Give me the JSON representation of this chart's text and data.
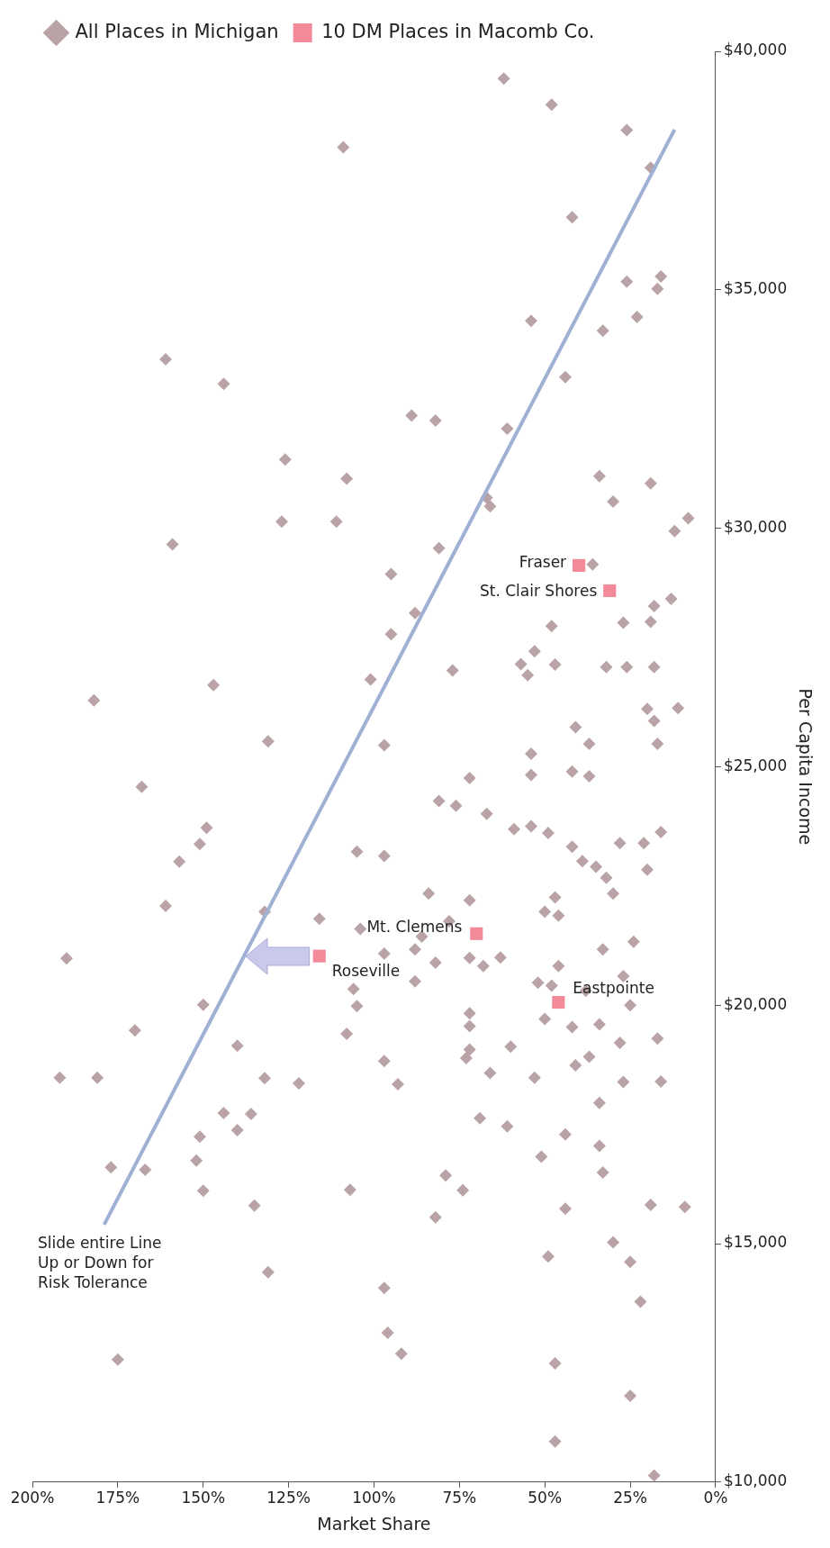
{
  "chart_data": {
    "type": "scatter",
    "xlabel": "Market Share",
    "ylabel": "Per Capita Income",
    "xlim": [
      200,
      0
    ],
    "ylim": [
      10000,
      40000
    ],
    "xticks": [
      {
        "value": 0,
        "label": "0%"
      },
      {
        "value": 25,
        "label": "25%"
      },
      {
        "value": 50,
        "label": "50%"
      },
      {
        "value": 75,
        "label": "75%"
      },
      {
        "value": 100,
        "label": "100%"
      },
      {
        "value": 125,
        "label": "125%"
      },
      {
        "value": 150,
        "label": "150%"
      },
      {
        "value": 175,
        "label": "175%"
      },
      {
        "value": 200,
        "label": "200%"
      }
    ],
    "yticks": [
      {
        "value": 10000,
        "label": "$10,000"
      },
      {
        "value": 15000,
        "label": "$15,000"
      },
      {
        "value": 20000,
        "label": "$20,000"
      },
      {
        "value": 25000,
        "label": "$25,000"
      },
      {
        "value": 30000,
        "label": "$30,000"
      },
      {
        "value": 35000,
        "label": "$35,000"
      },
      {
        "value": 40000,
        "label": "$40,000"
      }
    ],
    "grid": false,
    "legend": "top left",
    "series": [
      {
        "name": "All Places in Michigan",
        "color": "#b9a3a6",
        "marker": "diamond",
        "x": [
          109,
          161,
          144,
          126,
          108,
          127,
          111,
          159,
          95,
          95,
          101,
          147,
          182,
          131,
          97,
          89,
          88,
          62,
          48,
          26,
          19,
          42,
          26,
          16,
          17,
          23,
          33,
          54,
          44,
          82,
          61,
          34,
          19,
          30,
          67,
          66,
          12,
          8,
          81,
          36,
          13,
          18,
          27,
          19,
          48,
          53,
          57,
          55,
          47,
          77,
          32,
          26,
          18,
          20,
          18,
          11,
          41,
          37,
          17,
          168,
          149,
          151,
          157,
          105,
          97,
          161,
          132,
          116,
          104,
          97,
          88,
          190,
          106,
          105,
          150,
          170,
          108,
          140,
          192,
          181,
          132,
          122,
          97,
          93,
          144,
          136,
          140,
          151,
          152,
          150,
          177,
          167,
          107,
          135,
          131,
          97,
          96,
          92,
          175,
          54,
          54,
          42,
          37,
          72,
          81,
          76,
          67,
          59,
          54,
          49,
          42,
          28,
          21,
          16,
          39,
          35,
          32,
          30,
          20,
          84,
          72,
          78,
          47,
          50,
          46,
          86,
          82,
          72,
          68,
          63,
          24,
          33,
          46,
          88,
          52,
          48,
          38,
          27,
          25,
          50,
          42,
          34,
          72,
          72,
          72,
          73,
          60,
          37,
          41,
          28,
          17,
          53,
          66,
          27,
          16,
          34,
          69,
          61,
          44,
          51,
          34,
          33,
          79,
          74,
          82,
          44,
          19,
          9,
          30,
          25,
          49,
          22,
          47,
          25,
          47,
          18
        ],
        "values": [
          37990,
          33540,
          33030,
          31440,
          31040,
          30140,
          30140,
          29660,
          29040,
          27780,
          26830,
          26710,
          26390,
          25530,
          25450,
          32360,
          28220,
          39430,
          38880,
          38350,
          37560,
          36520,
          35170,
          35280,
          35020,
          34430,
          34140,
          34350,
          33170,
          32260,
          32090,
          31090,
          30940,
          30560,
          30640,
          30460,
          29940,
          30210,
          29580,
          29240,
          28520,
          28370,
          28020,
          28040,
          27950,
          27420,
          27150,
          26920,
          27140,
          27020,
          27090,
          27090,
          27090,
          26210,
          25960,
          26230,
          25830,
          25480,
          25480,
          24580,
          23720,
          23380,
          23010,
          23220,
          23130,
          22080,
          21960,
          21810,
          21600,
          21080,
          21170,
          20980,
          20340,
          19980,
          20010,
          19470,
          19400,
          19150,
          18480,
          18480,
          18470,
          18360,
          18830,
          18340,
          17740,
          17720,
          17380,
          17240,
          16740,
          16110,
          16600,
          16550,
          16130,
          15800,
          14400,
          14070,
          13130,
          12690,
          12570,
          25270,
          24830,
          24900,
          24800,
          24760,
          24280,
          24180,
          24010,
          23690,
          23750,
          23610,
          23320,
          23400,
          23400,
          23630,
          23020,
          22900,
          22670,
          22340,
          22840,
          22340,
          22200,
          21760,
          22260,
          21960,
          21880,
          21440,
          20890,
          20990,
          20820,
          21000,
          21330,
          21170,
          20820,
          20500,
          20470,
          20410,
          20300,
          20610,
          20000,
          19710,
          19540,
          19600,
          19830,
          19560,
          19070,
          18890,
          19130,
          18920,
          18740,
          19210,
          19300,
          18480,
          18580,
          18390,
          18400,
          17950,
          17630,
          17460,
          17290,
          16820,
          17050,
          16490,
          16430,
          16120,
          15550,
          15730,
          15810,
          15770,
          15030,
          14620,
          14730,
          13780,
          12490,
          11810,
          10850,
          10140
        ]
      },
      {
        "name": "10 DM Places in Macomb Co.",
        "color": "#f28a9a",
        "marker": "square",
        "x": [
          40,
          31,
          116,
          70,
          46
        ],
        "values": [
          29220,
          28690,
          21030,
          21500,
          20060
        ]
      },
      {
        "type": "line",
        "color": "#9fb0d4",
        "marker": "none",
        "x": [
          179,
          12
        ],
        "values": [
          15400,
          38360
        ]
      }
    ],
    "annotations": [
      "Slide entire Line\nUp or Down for\nRisk Tolerance",
      {
        "text": "Fraser",
        "x": 40,
        "y": 29220
      },
      {
        "text": "St. Clair Shores",
        "x": 31,
        "y": 28690
      },
      {
        "text": "Roseville",
        "x": 116,
        "y": 21030
      },
      {
        "text": "Mt. Clemens",
        "x": 70,
        "y": 21500
      },
      {
        "text": "Eastpointe",
        "x": 46,
        "y": 20060
      }
    ]
  }
}
